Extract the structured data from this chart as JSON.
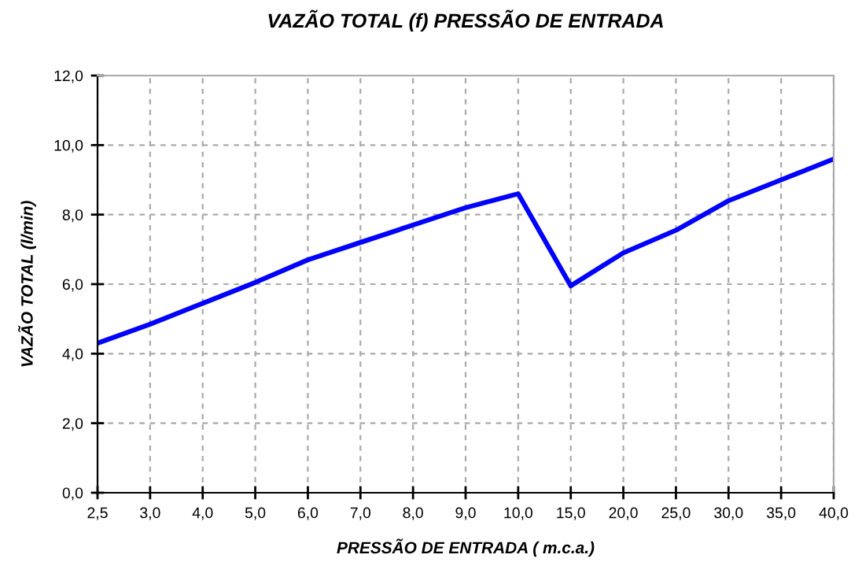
{
  "chart_data": {
    "type": "line",
    "title": "VAZÃO TOTAL (f) PRESSÃO DE ENTRADA",
    "xlabel": "PRESSÃO DE ENTRADA ( m.c.a.)",
    "ylabel": "VAZÃO TOTAL (l/min)",
    "categories": [
      "2,5",
      "3,0",
      "4,0",
      "5,0",
      "6,0",
      "7,0",
      "8,0",
      "9,0",
      "10,0",
      "15,0",
      "20,0",
      "25,0",
      "30,0",
      "35,0",
      "40,0"
    ],
    "series": [
      {
        "color": "#0000ff",
        "values": [
          4.3,
          4.85,
          5.45,
          6.05,
          6.7,
          7.2,
          7.7,
          8.2,
          8.6,
          5.95,
          6.9,
          7.55,
          8.4,
          9.0,
          9.6
        ]
      }
    ],
    "ylim": [
      0,
      12
    ],
    "yticks": [
      {
        "value": 0,
        "label": "0,0"
      },
      {
        "value": 2,
        "label": "2,0"
      },
      {
        "value": 4,
        "label": "4,0"
      },
      {
        "value": 6,
        "label": "6,0"
      },
      {
        "value": 8,
        "label": "8,0"
      },
      {
        "value": 10,
        "label": "10,0"
      },
      {
        "value": 12,
        "label": "12,0"
      }
    ],
    "grid": true,
    "marker": "none",
    "line_style": "solid"
  }
}
